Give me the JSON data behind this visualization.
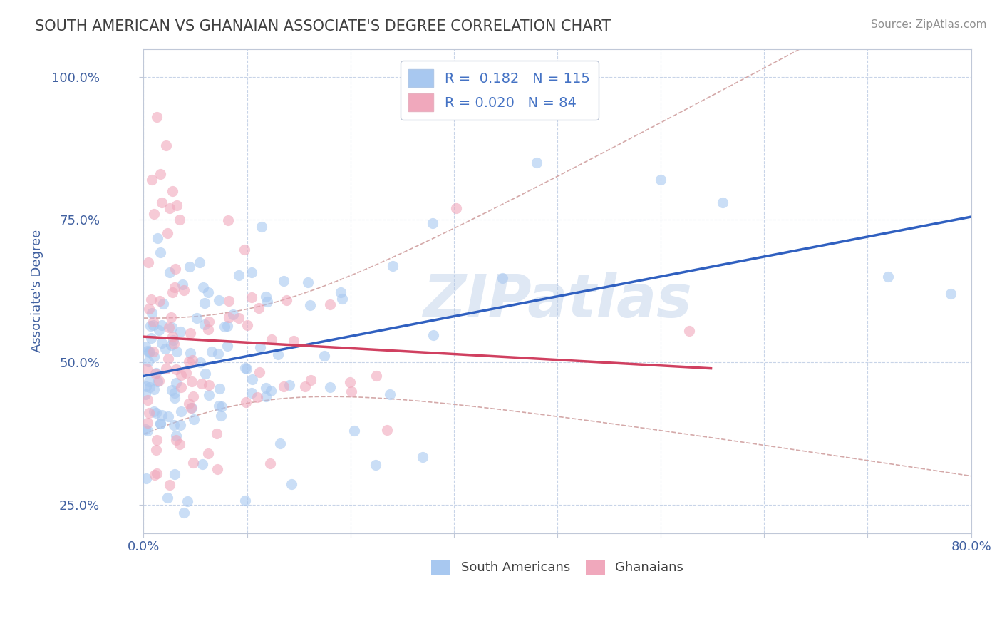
{
  "title": "SOUTH AMERICAN VS GHANAIAN ASSOCIATE'S DEGREE CORRELATION CHART",
  "source": "Source: ZipAtlas.com",
  "ylabel": "Associate's Degree",
  "xlim": [
    0.0,
    0.8
  ],
  "ylim": [
    0.2,
    1.05
  ],
  "xtick_positions": [
    0.0,
    0.1,
    0.2,
    0.3,
    0.4,
    0.5,
    0.6,
    0.7,
    0.8
  ],
  "xticklabels": [
    "0.0%",
    "",
    "",
    "",
    "",
    "",
    "",
    "",
    "80.0%"
  ],
  "ytick_positions": [
    0.25,
    0.5,
    0.75,
    1.0
  ],
  "yticklabels": [
    "25.0%",
    "50.0%",
    "75.0%",
    "100.0%"
  ],
  "watermark": "ZIPatlas",
  "blue_color": "#A8C8F0",
  "pink_color": "#F0A8BC",
  "blue_line_color": "#3060C0",
  "pink_line_color": "#D04060",
  "conf_line_color": "#D0A0A0",
  "R_blue": 0.182,
  "N_blue": 115,
  "R_pink": 0.02,
  "N_pink": 84,
  "background_color": "#FFFFFF",
  "grid_color": "#C8D4E8",
  "title_color": "#404040",
  "axis_label_color": "#4060A0",
  "tick_color": "#4060A0",
  "legend_label_color": "#4472C4"
}
